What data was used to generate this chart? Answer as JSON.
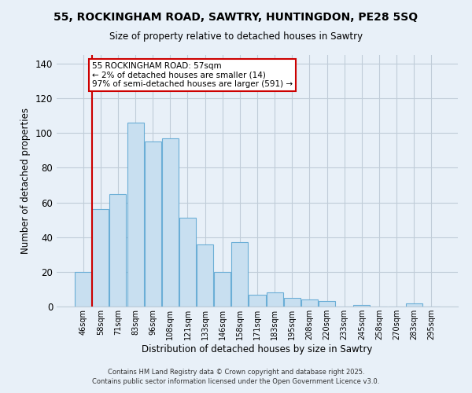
{
  "title_line1": "55, ROCKINGHAM ROAD, SAWTRY, HUNTINGDON, PE28 5SQ",
  "title_line2": "Size of property relative to detached houses in Sawtry",
  "xlabel": "Distribution of detached houses by size in Sawtry",
  "ylabel": "Number of detached properties",
  "categories": [
    "46sqm",
    "58sqm",
    "71sqm",
    "83sqm",
    "96sqm",
    "108sqm",
    "121sqm",
    "133sqm",
    "146sqm",
    "158sqm",
    "171sqm",
    "183sqm",
    "195sqm",
    "208sqm",
    "220sqm",
    "233sqm",
    "245sqm",
    "258sqm",
    "270sqm",
    "283sqm",
    "295sqm"
  ],
  "values": [
    20,
    56,
    65,
    106,
    95,
    97,
    51,
    36,
    20,
    37,
    7,
    8,
    5,
    4,
    3,
    0,
    1,
    0,
    0,
    2,
    0
  ],
  "bar_color": "#c8dff0",
  "bar_edge_color": "#6baed6",
  "vline_color": "#cc0000",
  "annotation_text": "55 ROCKINGHAM ROAD: 57sqm\n← 2% of detached houses are smaller (14)\n97% of semi-detached houses are larger (591) →",
  "annotation_box_color": "#ffffff",
  "annotation_box_edge": "#cc0000",
  "ylim": [
    0,
    145
  ],
  "yticks": [
    0,
    20,
    40,
    60,
    80,
    100,
    120,
    140
  ],
  "footer_line1": "Contains HM Land Registry data © Crown copyright and database right 2025.",
  "footer_line2": "Contains public sector information licensed under the Open Government Licence v3.0.",
  "bg_color": "#e8f0f8",
  "grid_color": "#c0ccd8"
}
